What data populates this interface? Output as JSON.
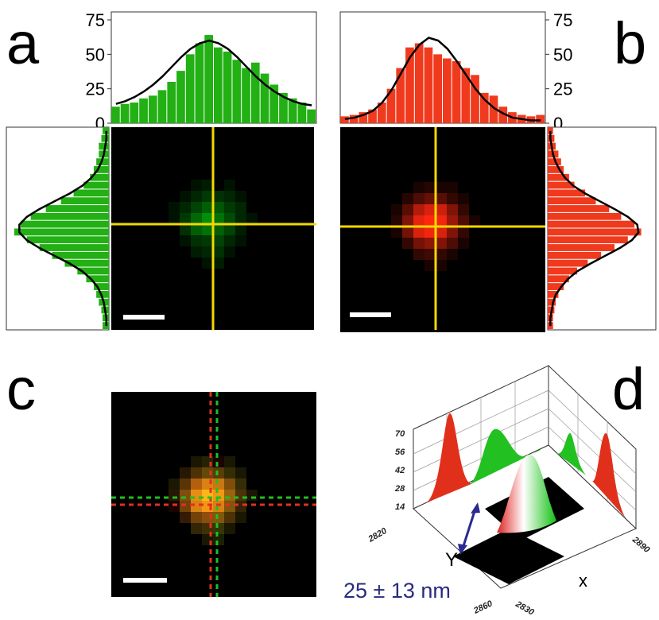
{
  "panels": [
    {
      "label": "a",
      "top_hist": {
        "ylim": [
          0,
          75
        ],
        "yticks": [
          75,
          50,
          25,
          0
        ],
        "color": "#22b014",
        "values": [
          12,
          14,
          15,
          18,
          20,
          24,
          30,
          38,
          50,
          58,
          64,
          55,
          52,
          46,
          40,
          44,
          36,
          28,
          22,
          18,
          15,
          10
        ],
        "fit": [
          14,
          16,
          19,
          23,
          28,
          34,
          41,
          48,
          54,
          58,
          60,
          58,
          54,
          48,
          41,
          34,
          28,
          23,
          19,
          16,
          14,
          13
        ]
      },
      "side_hist": {
        "xlim": [
          0,
          75
        ],
        "color": "#22b014",
        "values": [
          5,
          6,
          8,
          8,
          10,
          12,
          15,
          20,
          28,
          38,
          50,
          62,
          70,
          75,
          65,
          55,
          45,
          35,
          25,
          18,
          12,
          10,
          8,
          6,
          5,
          5
        ],
        "fit": [
          2,
          2,
          3,
          4,
          6,
          9,
          14,
          21,
          31,
          43,
          55,
          65,
          71,
          71,
          65,
          55,
          43,
          31,
          21,
          14,
          9,
          6,
          4,
          3,
          2,
          2
        ]
      },
      "image": {
        "channel": "green",
        "pixels": [
          [
            0,
            0,
            0.1,
            0.15,
            0,
            0.1,
            0,
            0
          ],
          [
            0,
            0.1,
            0.2,
            0.3,
            0.25,
            0.2,
            0.1,
            0
          ],
          [
            0.1,
            0.2,
            0.35,
            0.5,
            0.45,
            0.3,
            0.2,
            0
          ],
          [
            0.1,
            0.3,
            0.55,
            0.75,
            0.6,
            0.4,
            0.2,
            0.1
          ],
          [
            0,
            0.25,
            0.5,
            0.6,
            0.5,
            0.35,
            0.15,
            0
          ],
          [
            0,
            0.1,
            0.25,
            0.3,
            0.35,
            0.2,
            0.1,
            0
          ],
          [
            0,
            0,
            0.15,
            0.2,
            0.25,
            0.1,
            0,
            0
          ],
          [
            0,
            0,
            0,
            0.1,
            0.15,
            0,
            0,
            0
          ]
        ]
      }
    },
    {
      "label": "b",
      "top_hist": {
        "ylim": [
          0,
          75
        ],
        "yticks": [
          75,
          50,
          25,
          0
        ],
        "color": "#f03a1e",
        "values": [
          5,
          6,
          8,
          10,
          15,
          25,
          40,
          55,
          58,
          55,
          50,
          47,
          45,
          40,
          35,
          22,
          20,
          12,
          8,
          6,
          5,
          6
        ],
        "fit": [
          3,
          4,
          6,
          9,
          15,
          24,
          36,
          48,
          57,
          62,
          60,
          54,
          45,
          35,
          25,
          17,
          11,
          7,
          4,
          3,
          2,
          2
        ]
      },
      "side_hist": {
        "xlim": [
          0,
          75
        ],
        "color": "#f03a1e",
        "values": [
          4,
          5,
          6,
          8,
          10,
          12,
          16,
          20,
          28,
          36,
          46,
          55,
          65,
          70,
          60,
          50,
          40,
          30,
          22,
          16,
          12,
          8,
          6,
          5,
          4,
          4
        ],
        "fit": [
          2,
          2,
          3,
          4,
          6,
          9,
          13,
          19,
          28,
          39,
          50,
          60,
          67,
          68,
          63,
          54,
          43,
          32,
          22,
          15,
          10,
          6,
          4,
          3,
          2,
          2
        ]
      },
      "image": {
        "channel": "red",
        "pixels": [
          [
            0,
            0,
            0.1,
            0.15,
            0.1,
            0.1,
            0,
            0
          ],
          [
            0,
            0.15,
            0.3,
            0.4,
            0.35,
            0.2,
            0.1,
            0
          ],
          [
            0.1,
            0.35,
            0.7,
            0.85,
            0.8,
            0.5,
            0.2,
            0
          ],
          [
            0.15,
            0.5,
            0.9,
            1,
            0.95,
            0.6,
            0.3,
            0.1
          ],
          [
            0.1,
            0.45,
            0.85,
            0.95,
            0.85,
            0.5,
            0.2,
            0
          ],
          [
            0,
            0.2,
            0.45,
            0.55,
            0.5,
            0.3,
            0.1,
            0
          ],
          [
            0,
            0,
            0.2,
            0.25,
            0.2,
            0.1,
            0,
            0
          ],
          [
            0,
            0,
            0,
            0.1,
            0.1,
            0,
            0,
            0
          ]
        ]
      }
    }
  ],
  "overlay": {
    "label": "c",
    "red": [
      [
        0,
        0,
        0.1,
        0.15,
        0.1,
        0.1,
        0,
        0
      ],
      [
        0,
        0.15,
        0.3,
        0.4,
        0.35,
        0.2,
        0.1,
        0
      ],
      [
        0.1,
        0.35,
        0.7,
        0.85,
        0.8,
        0.5,
        0.2,
        0
      ],
      [
        0.15,
        0.5,
        0.9,
        1,
        0.95,
        0.6,
        0.3,
        0.1
      ],
      [
        0.1,
        0.45,
        0.85,
        0.95,
        0.85,
        0.5,
        0.2,
        0
      ],
      [
        0,
        0.2,
        0.45,
        0.55,
        0.5,
        0.3,
        0.1,
        0
      ],
      [
        0,
        0,
        0.2,
        0.25,
        0.2,
        0.1,
        0,
        0
      ],
      [
        0,
        0,
        0,
        0.1,
        0.1,
        0,
        0,
        0
      ]
    ],
    "green": [
      [
        0,
        0,
        0.1,
        0.15,
        0,
        0.1,
        0,
        0
      ],
      [
        0,
        0.1,
        0.2,
        0.3,
        0.25,
        0.2,
        0.1,
        0
      ],
      [
        0.1,
        0.2,
        0.35,
        0.5,
        0.45,
        0.3,
        0.2,
        0
      ],
      [
        0.1,
        0.3,
        0.55,
        0.75,
        0.6,
        0.4,
        0.2,
        0.1
      ],
      [
        0,
        0.25,
        0.5,
        0.6,
        0.5,
        0.35,
        0.15,
        0
      ],
      [
        0,
        0.1,
        0.25,
        0.3,
        0.35,
        0.2,
        0.1,
        0
      ],
      [
        0,
        0,
        0.15,
        0.2,
        0.25,
        0.1,
        0,
        0
      ],
      [
        0,
        0,
        0,
        0.1,
        0.15,
        0,
        0,
        0
      ]
    ]
  },
  "surface": {
    "label": "d",
    "zticks": [
      70,
      56,
      42,
      28,
      14
    ],
    "y_tick": "2820",
    "x_tick": "2890",
    "bottom_ticks": [
      "2860",
      "2830"
    ],
    "y_label": "Y",
    "x_label": "x",
    "annotation": "25 ± 13 nm"
  }
}
